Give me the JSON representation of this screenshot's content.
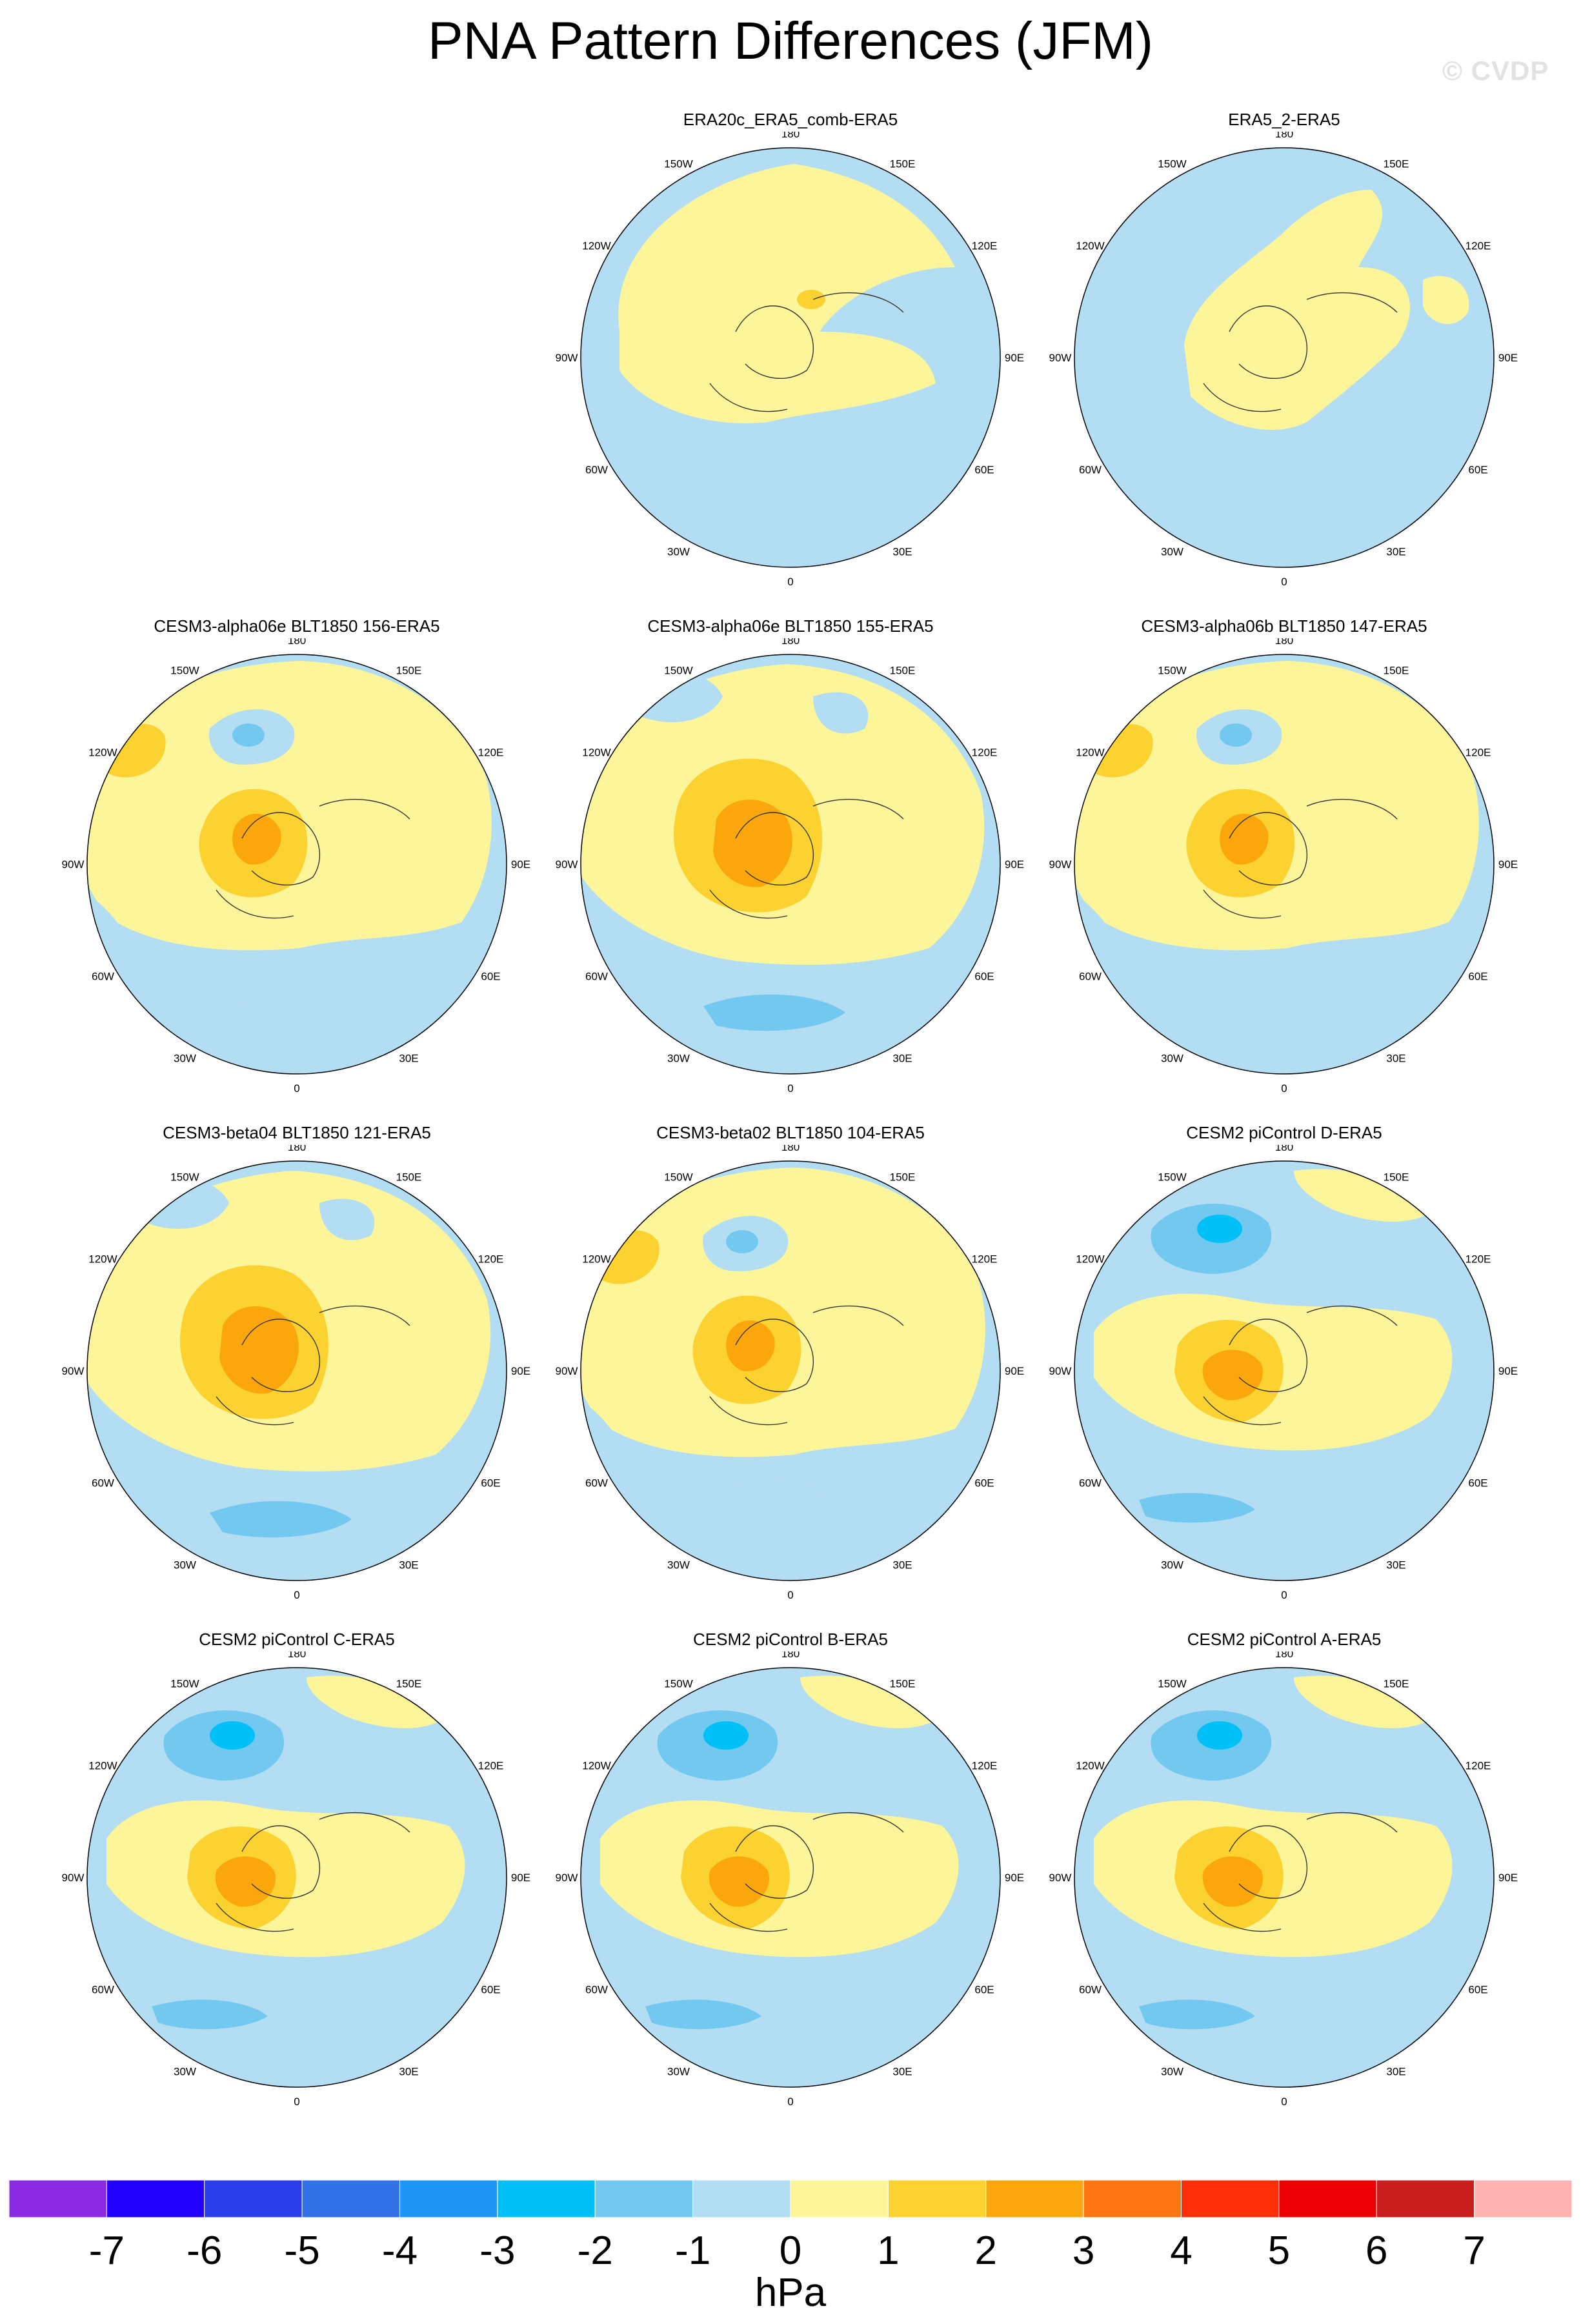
{
  "title": "PNA Pattern Differences (JFM)",
  "watermark": "© CVDP",
  "lon_labels": {
    "top": "180",
    "bottom": "0",
    "left": "90W",
    "right": "90E",
    "upper_left_1": "150W",
    "upper_left_2": "120W",
    "upper_right_1": "150E",
    "upper_right_2": "120E",
    "lower_left_1": "60W",
    "lower_left_2": "30W",
    "lower_right_1": "60E",
    "lower_right_2": "30E"
  },
  "panels": [
    {
      "title": "ERA20c_ERA5_comb-ERA5",
      "pattern": "era20c"
    },
    {
      "title": "ERA5_2-ERA5",
      "pattern": "era5_2"
    },
    {
      "title": "CESM3-alpha06e BLT1850 156-ERA5",
      "pattern": "cesm_a"
    },
    {
      "title": "CESM3-alpha06e BLT1850 155-ERA5",
      "pattern": "cesm_b"
    },
    {
      "title": "CESM3-alpha06b BLT1850 147-ERA5",
      "pattern": "cesm_a"
    },
    {
      "title": "CESM3-beta04 BLT1850 121-ERA5",
      "pattern": "cesm_b"
    },
    {
      "title": "CESM3-beta02 BLT1850 104-ERA5",
      "pattern": "cesm_a"
    },
    {
      "title": "CESM2 piControl D-ERA5",
      "pattern": "cesm2"
    },
    {
      "title": "CESM2 piControl C-ERA5",
      "pattern": "cesm2"
    },
    {
      "title": "CESM2 piControl B-ERA5",
      "pattern": "cesm2"
    },
    {
      "title": "CESM2 piControl A-ERA5",
      "pattern": "cesm2"
    }
  ],
  "colorbar": {
    "unit": "hPa",
    "tick_labels": [
      "-7",
      "-6",
      "-5",
      "-4",
      "-3",
      "-2",
      "-1",
      "0",
      "1",
      "2",
      "3",
      "4",
      "5",
      "6",
      "7"
    ],
    "colors": [
      "#8a2be2",
      "#2200ff",
      "#2a3de8",
      "#3271e6",
      "#1e96f5",
      "#00c0f7",
      "#73c8f0",
      "#b3ddf2",
      "#fdf59a",
      "#fbd230",
      "#fba70c",
      "#fb7512",
      "#fb2f08",
      "#eb0006",
      "#c81e1e",
      "#ffb4b4"
    ]
  }
}
